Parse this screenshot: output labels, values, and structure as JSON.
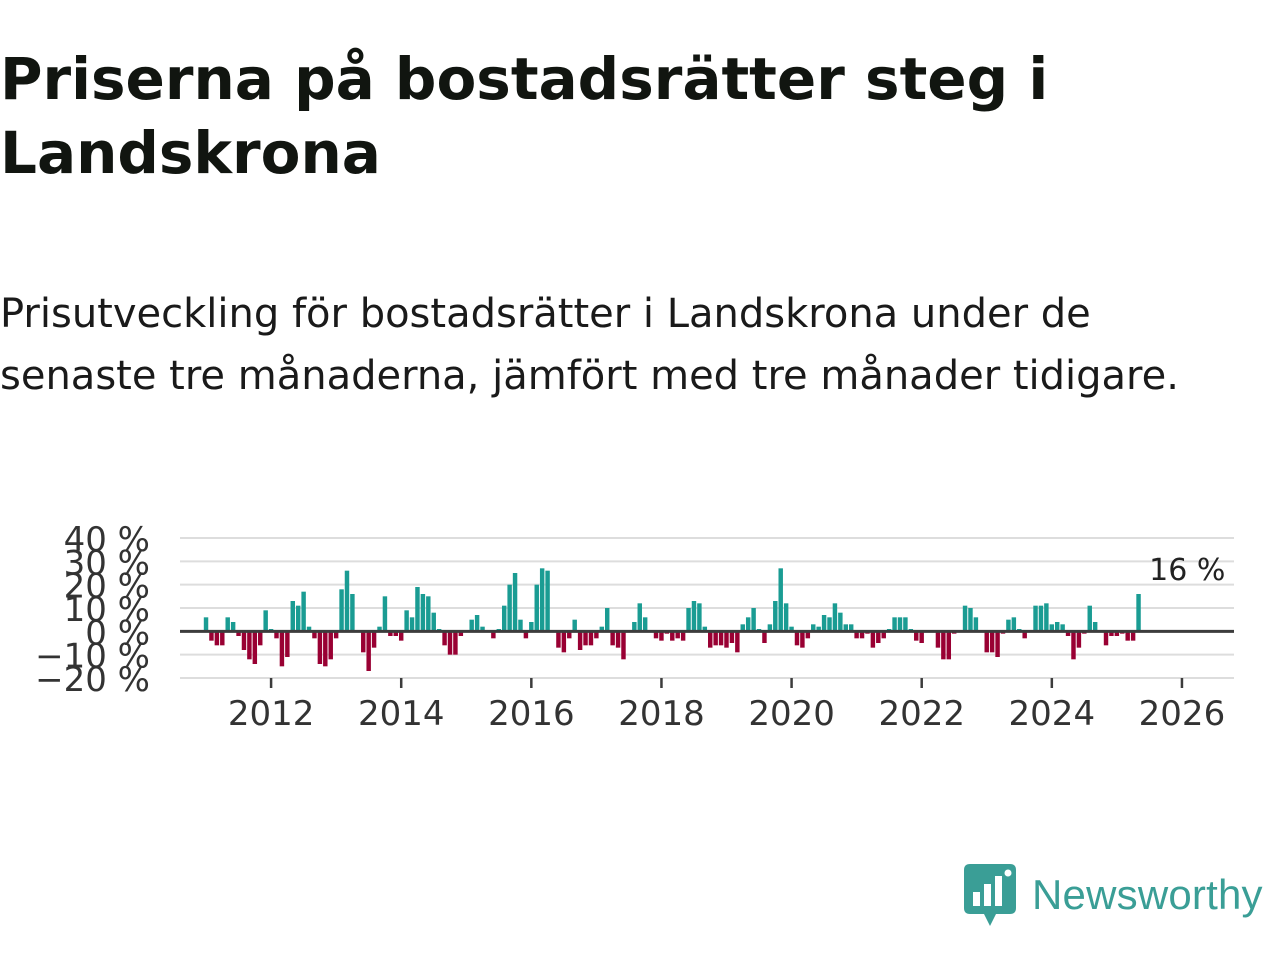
{
  "title": "Priserna på bostadsrätter steg i Landskrona",
  "subtitle": "Prisutveckling för bostadsrätter i Landskrona under de senaste tre månaderna, jämfört med tre månader tidigare.",
  "colors": {
    "positive": "#1a9c93",
    "negative": "#990033",
    "zero_line": "#3c3c3c",
    "grid": "#dddddd",
    "text": "#333333"
  },
  "chart_data": {
    "type": "bar",
    "title": "Priserna på bostadsrätter steg i Landskrona",
    "xlabel": "",
    "ylabel": "",
    "ylim": [
      -20,
      40
    ],
    "xlim": [
      2010.6,
      2026.8
    ],
    "y_ticks": [
      40,
      30,
      20,
      10,
      0,
      -10,
      -20
    ],
    "y_tick_labels": [
      "40 %",
      "30 %",
      "20 %",
      "10 %",
      "0 %",
      "−10 %",
      "−20 %"
    ],
    "x_ticks": [
      2012,
      2014,
      2016,
      2018,
      2020,
      2022,
      2024,
      2026
    ],
    "x_tick_labels": [
      "2012",
      "2014",
      "2016",
      "2018",
      "2020",
      "2022",
      "2024",
      "2026"
    ],
    "annotation": {
      "x": 2026.083,
      "y": 16,
      "text": "16 %"
    },
    "grid": true,
    "series": [
      {
        "name": "Prisutveckling",
        "x_start": 2011.0,
        "x_step": 0.08333,
        "unit": "%",
        "values": [
          6,
          -4,
          -6,
          -6,
          6,
          4,
          -2,
          -8,
          -12,
          -14,
          -6,
          9,
          1,
          -3,
          -15,
          -11,
          13,
          11,
          17,
          2,
          -3,
          -14,
          -15,
          -12,
          -3,
          18,
          26,
          16,
          0,
          -9,
          -17,
          -7,
          2,
          15,
          -2,
          -2,
          -4,
          9,
          6,
          19,
          16,
          15,
          8,
          1,
          -6,
          -10,
          -10,
          -2,
          0,
          5,
          7,
          2,
          0,
          -3,
          1,
          11,
          20,
          25,
          5,
          -3,
          4,
          20,
          27,
          26,
          0,
          -7,
          -9,
          -3,
          5,
          -8,
          -6,
          -6,
          -3,
          2,
          10,
          -6,
          -7,
          -12,
          0,
          4,
          12,
          6,
          0,
          -3,
          -4,
          -1,
          -4,
          -3,
          -4,
          10,
          13,
          12,
          2,
          -7,
          -6,
          -6,
          -7,
          -5,
          -9,
          3,
          6,
          10,
          1,
          -5,
          3,
          13,
          27,
          12,
          2,
          -6,
          -7,
          -3,
          3,
          2,
          7,
          6,
          12,
          8,
          3,
          3,
          -3,
          -3,
          -1,
          -7,
          -5,
          -3,
          1,
          6,
          6,
          6,
          1,
          -4,
          -5,
          0,
          0,
          -7,
          -12,
          -12,
          -1,
          0,
          11,
          10,
          6,
          0,
          -9,
          -9,
          -11,
          -1,
          5,
          6,
          1,
          -3,
          0,
          11,
          11,
          12,
          3,
          4,
          3,
          -2,
          -12,
          -7,
          -1,
          11,
          4,
          0,
          -6,
          -2,
          -2,
          -1,
          -4,
          -4,
          16
        ]
      }
    ]
  },
  "logo": {
    "text": "Newsworthy"
  }
}
